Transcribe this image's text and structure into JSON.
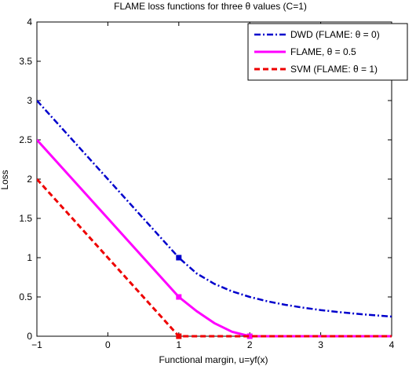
{
  "chart_data": {
    "type": "line",
    "title": "FLAME loss functions for three θ values (C=1)",
    "xlabel": "Functional margin, u=yf(x)",
    "ylabel": "Loss",
    "xlim": [
      -1,
      4
    ],
    "ylim": [
      0,
      4
    ],
    "xticks": [
      -1,
      0,
      1,
      2,
      3,
      4
    ],
    "xtick_labels": [
      "−1",
      "0",
      "1",
      "2",
      "3",
      "4"
    ],
    "yticks": [
      0,
      0.5,
      1,
      1.5,
      2,
      2.5,
      3,
      3.5,
      4
    ],
    "ytick_labels": [
      "0",
      "0.5",
      "1",
      "1.5",
      "2",
      "2.5",
      "3",
      "3.5",
      "4"
    ],
    "grid": false,
    "legend_position": "top-right",
    "series": [
      {
        "name": "DWD (FLAME: θ = 0)",
        "color": "#0000cc",
        "dash": "dash-dot",
        "points": [
          [
            -1,
            3.0
          ],
          [
            -0.5,
            2.5
          ],
          [
            0,
            2.0
          ],
          [
            0.5,
            1.5
          ],
          [
            1,
            1.0
          ],
          [
            1.25,
            0.8
          ],
          [
            1.5,
            0.667
          ],
          [
            1.75,
            0.571
          ],
          [
            2,
            0.5
          ],
          [
            2.25,
            0.444
          ],
          [
            2.5,
            0.4
          ],
          [
            2.75,
            0.364
          ],
          [
            3,
            0.333
          ],
          [
            3.25,
            0.308
          ],
          [
            3.5,
            0.286
          ],
          [
            3.75,
            0.267
          ],
          [
            4,
            0.25
          ]
        ],
        "markers": [
          [
            1,
            1.0
          ]
        ],
        "marker_shape": "square"
      },
      {
        "name": "FLAME, θ = 0.5",
        "color": "#ff00ff",
        "dash": "solid",
        "points": [
          [
            -1,
            2.5
          ],
          [
            -0.5,
            2.0
          ],
          [
            0,
            1.5
          ],
          [
            0.5,
            1.0
          ],
          [
            1,
            0.5
          ],
          [
            1.25,
            0.32
          ],
          [
            1.5,
            0.167
          ],
          [
            1.75,
            0.057
          ],
          [
            2,
            0.0
          ],
          [
            2.5,
            0.0
          ],
          [
            3,
            0.0
          ],
          [
            3.5,
            0.0
          ],
          [
            4,
            0.0
          ]
        ],
        "markers": [
          [
            1,
            0.5
          ],
          [
            2,
            0.0
          ]
        ],
        "marker_shape": "square"
      },
      {
        "name": "SVM (FLAME: θ = 1)",
        "color": "#ee0000",
        "dash": "dashed",
        "points": [
          [
            -1,
            2.0
          ],
          [
            -0.5,
            1.5
          ],
          [
            0,
            1.0
          ],
          [
            0.5,
            0.5
          ],
          [
            1,
            0.0
          ],
          [
            1.5,
            0.0
          ],
          [
            2,
            0.0
          ],
          [
            2.5,
            0.0
          ],
          [
            3,
            0.0
          ],
          [
            3.5,
            0.0
          ],
          [
            4,
            0.0
          ]
        ],
        "markers": [
          [
            1,
            0.0
          ]
        ],
        "marker_shape": "square"
      }
    ]
  }
}
